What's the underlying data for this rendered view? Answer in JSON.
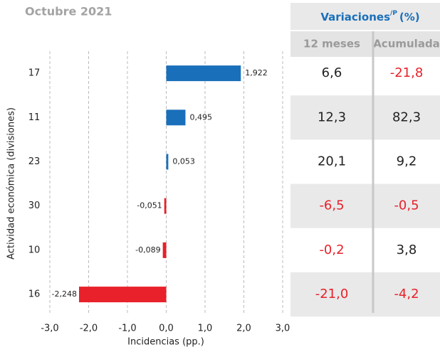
{
  "chart_data": {
    "type": "bar",
    "orientation": "horizontal",
    "title": "Octubre 2021",
    "categories": [
      "17",
      "11",
      "23",
      "30",
      "10",
      "16"
    ],
    "values": [
      1.922,
      0.495,
      0.053,
      -0.051,
      -0.089,
      -2.248
    ],
    "value_labels": [
      "1,922",
      "0,495",
      "0,053",
      "-0,051",
      "-0,089",
      "-2,248"
    ],
    "positive_color": "#1a6fba",
    "negative_color": "#e8212a",
    "xlim": [
      -3,
      3
    ],
    "xticks": [
      {
        "value": -3,
        "label": "-3,0"
      },
      {
        "value": -2,
        "label": "-2,0"
      },
      {
        "value": -1,
        "label": "-1,0"
      },
      {
        "value": 0,
        "label": "0,0"
      },
      {
        "value": 1,
        "label": "1,0"
      },
      {
        "value": 2,
        "label": "2,0"
      },
      {
        "value": 3,
        "label": "3,0"
      }
    ],
    "xlabel": "Incidencias (pp.)",
    "ylabel": "Actividad económica (divisiones)",
    "grid": true
  },
  "table": {
    "title": "Variaciones",
    "title_sup": "/P",
    "title_unit": "(%)",
    "columns": [
      "12 meses",
      "Acumulada"
    ],
    "rows": [
      [
        "6,6",
        "-21,8"
      ],
      [
        "12,3",
        "82,3"
      ],
      [
        "20,1",
        "9,2"
      ],
      [
        "-6,5",
        "-0,5"
      ],
      [
        "-0,2",
        "3,8"
      ],
      [
        "-21,0",
        "-4,2"
      ]
    ]
  }
}
